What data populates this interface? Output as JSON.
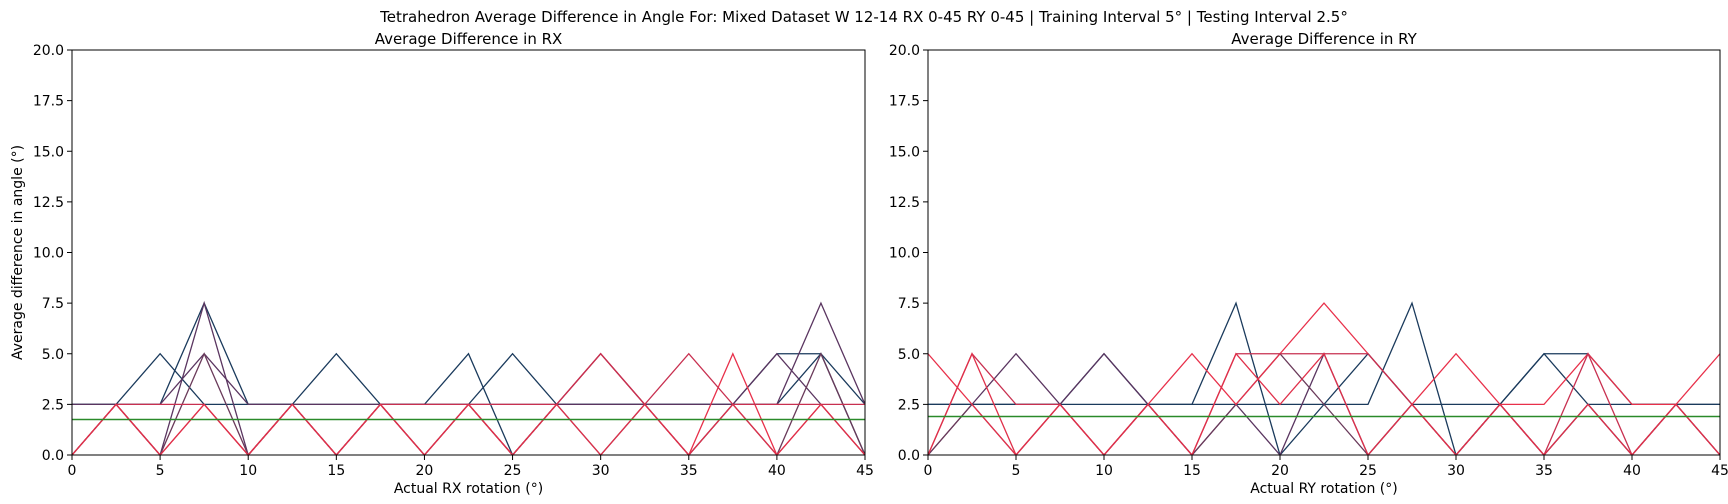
{
  "suptitle": "Tetrahedron Average Difference in Angle For: Mixed Dataset W 12-14 RX 0-45 RY 0-45 | Training Interval 5° | Testing Interval 2.5°",
  "colors": {
    "navy": "#1a3a5c",
    "plum": "#5a3560",
    "crimson": "#e8304a",
    "red": "#e0304a",
    "green": "#2a8a2a"
  },
  "chart_data": [
    {
      "type": "line",
      "title": "Average Difference in RX",
      "xlabel": "Actual RX rotation (°)",
      "ylabel": "Average difference in angle (°)",
      "xlim": [
        0,
        45
      ],
      "ylim": [
        0,
        20
      ],
      "xticks": [
        "0",
        "5",
        "10",
        "15",
        "20",
        "25",
        "30",
        "35",
        "40",
        "45"
      ],
      "yticks": [
        "0.0",
        "2.5",
        "5.0",
        "7.5",
        "10.0",
        "12.5",
        "15.0",
        "17.5",
        "20.0"
      ],
      "grid": false,
      "legend": "none",
      "x": [
        0,
        2.5,
        5,
        7.5,
        10,
        12.5,
        15,
        17.5,
        20,
        22.5,
        25,
        27.5,
        30,
        32.5,
        35,
        37.5,
        40,
        42.5,
        45
      ],
      "series": [
        {
          "color": "#1a3a5c",
          "values": [
            2.5,
            2.5,
            5,
            2.5,
            2.5,
            2.5,
            5,
            2.5,
            2.5,
            5,
            0,
            2.5,
            2.5,
            2.5,
            2.5,
            2.5,
            5,
            5,
            2.5
          ]
        },
        {
          "color": "#1a3a5c",
          "values": [
            2.5,
            2.5,
            2.5,
            7.5,
            2.5,
            2.5,
            2.5,
            2.5,
            2.5,
            2.5,
            5,
            2.5,
            2.5,
            2.5,
            2.5,
            2.5,
            2.5,
            5,
            0
          ]
        },
        {
          "color": "#5a3560",
          "values": [
            0,
            2.5,
            0,
            7.5,
            0,
            2.5,
            0,
            2.5,
            0,
            2.5,
            0,
            2.5,
            5,
            2.5,
            0,
            2.5,
            5,
            2.5,
            0
          ]
        },
        {
          "color": "#5a3560",
          "values": [
            2.5,
            2.5,
            2.5,
            5,
            2.5,
            2.5,
            2.5,
            2.5,
            2.5,
            2.5,
            2.5,
            2.5,
            2.5,
            2.5,
            2.5,
            2.5,
            2.5,
            7.5,
            2.5
          ]
        },
        {
          "color": "#6a3a5a",
          "values": [
            0,
            2.5,
            0,
            5,
            0,
            2.5,
            0,
            2.5,
            0,
            2.5,
            0,
            2.5,
            0,
            2.5,
            0,
            2.5,
            0,
            5,
            0
          ]
        },
        {
          "color": "#e8304a",
          "values": [
            0,
            2.5,
            0,
            2.5,
            0,
            2.5,
            0,
            2.5,
            0,
            2.5,
            0,
            2.5,
            5,
            2.5,
            0,
            5,
            0,
            2.5,
            0
          ]
        },
        {
          "color": "#c83050",
          "values": [
            0,
            2.5,
            2.5,
            2.5,
            0,
            2.5,
            0,
            2.5,
            2.5,
            2.5,
            2.5,
            2.5,
            5,
            2.5,
            5,
            2.5,
            2.5,
            2.5,
            2.5
          ]
        },
        {
          "color": "#e0304a",
          "values": [
            0,
            2.5,
            0,
            2.5,
            0,
            2.5,
            0,
            2.5,
            0,
            2.5,
            0,
            2.5,
            0,
            2.5,
            0,
            2.5,
            0,
            2.5,
            0
          ]
        },
        {
          "color": "#2a8a2a",
          "values": [
            1.75,
            1.75,
            1.75,
            1.75,
            1.75,
            1.75,
            1.75,
            1.75,
            1.75,
            1.75,
            1.75,
            1.75,
            1.75,
            1.75,
            1.75,
            1.75,
            1.75,
            1.75,
            1.75
          ]
        }
      ]
    },
    {
      "type": "line",
      "title": "Average Difference in RY",
      "xlabel": "Actual RY rotation (°)",
      "ylabel": "",
      "xlim": [
        0,
        45
      ],
      "ylim": [
        0,
        20
      ],
      "xticks": [
        "0",
        "5",
        "10",
        "15",
        "20",
        "25",
        "30",
        "35",
        "40",
        "45"
      ],
      "yticks": [
        "0.0",
        "2.5",
        "5.0",
        "7.5",
        "10.0",
        "12.5",
        "15.0",
        "17.5",
        "20.0"
      ],
      "grid": false,
      "legend": "none",
      "x": [
        0,
        2.5,
        5,
        7.5,
        10,
        12.5,
        15,
        17.5,
        20,
        22.5,
        25,
        27.5,
        30,
        32.5,
        35,
        37.5,
        40,
        42.5,
        45
      ],
      "series": [
        {
          "color": "#1a3a5c",
          "values": [
            2.5,
            2.5,
            2.5,
            2.5,
            2.5,
            2.5,
            2.5,
            7.5,
            0,
            2.5,
            5,
            2.5,
            2.5,
            2.5,
            5,
            5,
            2.5,
            2.5,
            2.5
          ]
        },
        {
          "color": "#1a3a5c",
          "values": [
            2.5,
            2.5,
            2.5,
            2.5,
            5,
            2.5,
            2.5,
            2.5,
            2.5,
            2.5,
            2.5,
            7.5,
            0,
            2.5,
            5,
            2.5,
            2.5,
            2.5,
            2.5
          ]
        },
        {
          "color": "#5a3560",
          "values": [
            0,
            2.5,
            5,
            2.5,
            5,
            2.5,
            0,
            2.5,
            0,
            5,
            0,
            2.5,
            0,
            2.5,
            0,
            2.5,
            0,
            2.5,
            0
          ]
        },
        {
          "color": "#6a3a5a",
          "values": [
            0,
            2.5,
            0,
            2.5,
            0,
            2.5,
            0,
            2.5,
            5,
            2.5,
            0,
            2.5,
            0,
            2.5,
            0,
            2.5,
            0,
            2.5,
            0
          ]
        },
        {
          "color": "#e8304a",
          "values": [
            5,
            2.5,
            0,
            2.5,
            0,
            2.5,
            5,
            2.5,
            5,
            7.5,
            5,
            2.5,
            5,
            2.5,
            2.5,
            5,
            2.5,
            2.5,
            5
          ]
        },
        {
          "color": "#c83050",
          "values": [
            0,
            5,
            2.5,
            2.5,
            0,
            2.5,
            0,
            5,
            5,
            5,
            5,
            2.5,
            0,
            2.5,
            0,
            5,
            0,
            2.5,
            0
          ]
        },
        {
          "color": "#e0304a",
          "values": [
            0,
            5,
            0,
            2.5,
            0,
            2.5,
            0,
            5,
            2.5,
            5,
            0,
            2.5,
            0,
            2.5,
            0,
            2.5,
            0,
            2.5,
            0
          ]
        },
        {
          "color": "#2a8a2a",
          "values": [
            1.9,
            1.9,
            1.9,
            1.9,
            1.9,
            1.9,
            1.9,
            1.9,
            1.9,
            1.9,
            1.9,
            1.9,
            1.9,
            1.9,
            1.9,
            1.9,
            1.9,
            1.9,
            1.9
          ]
        }
      ]
    }
  ]
}
